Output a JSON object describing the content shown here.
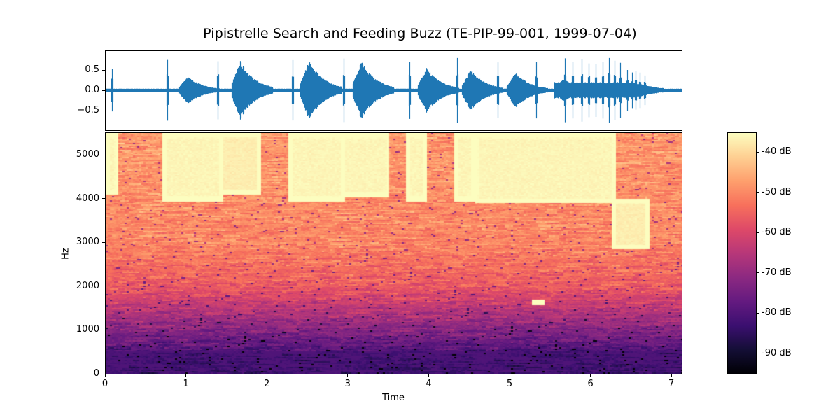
{
  "title": "Pipistrelle Search and Feeding Buzz (TE-PIP-99-001, 1999-07-04)",
  "waveform": {
    "yticks": [
      {
        "label": "0.5",
        "value": 0.5
      },
      {
        "label": "0.0",
        "value": 0.0
      },
      {
        "label": "−0.5",
        "value": -0.5
      }
    ],
    "color": "#1f77b4"
  },
  "spectrogram": {
    "ylabel": "Hz",
    "xlabel": "Time",
    "yticks": [
      {
        "label": "0",
        "value": 0
      },
      {
        "label": "1000",
        "value": 1000
      },
      {
        "label": "2000",
        "value": 2000
      },
      {
        "label": "3000",
        "value": 3000
      },
      {
        "label": "4000",
        "value": 4000
      },
      {
        "label": "5000",
        "value": 5000
      }
    ],
    "xticks": [
      {
        "label": "0",
        "value": 0
      },
      {
        "label": "1",
        "value": 1
      },
      {
        "label": "2",
        "value": 2
      },
      {
        "label": "3",
        "value": 3
      },
      {
        "label": "4",
        "value": 4
      },
      {
        "label": "5",
        "value": 5
      },
      {
        "label": "6",
        "value": 6
      },
      {
        "label": "7",
        "value": 7
      }
    ],
    "colormap": "magma"
  },
  "colorbar": {
    "ticks": [
      {
        "label": "-40 dB",
        "value": -40
      },
      {
        "label": "-50 dB",
        "value": -50
      },
      {
        "label": "-60 dB",
        "value": -60
      },
      {
        "label": "-70 dB",
        "value": -70
      },
      {
        "label": "-80 dB",
        "value": -80
      },
      {
        "label": "-90 dB",
        "value": -90
      }
    ]
  },
  "chart_data": [
    {
      "type": "line",
      "title": "Pipistrelle Search and Feeding Buzz (TE-PIP-99-001, 1999-07-04)",
      "subplot": "waveform",
      "xlabel": "",
      "ylabel": "",
      "xlim": [
        0,
        7.12
      ],
      "ylim": [
        -0.98,
        0.97
      ],
      "yticks": [
        -0.5,
        0.0,
        0.5
      ],
      "series": [
        {
          "name": "amplitude",
          "color": "#1f77b4",
          "description": "audio waveform: sparse sharp clicks followed by longer FM call bursts, then a rapid feeding buzz of clicks near 5.8-6.6 s",
          "events": [
            {
              "t": 0.09,
              "peak": 0.6,
              "trough": -0.6,
              "kind": "click"
            },
            {
              "t": 0.77,
              "peak": 0.82,
              "trough": -0.85,
              "kind": "click"
            },
            {
              "t": 0.95,
              "peak": 0.35,
              "trough": -0.35,
              "kind": "burst"
            },
            {
              "t": 1.39,
              "peak": 0.8,
              "trough": -0.8,
              "kind": "click"
            },
            {
              "t": 1.6,
              "peak": 0.72,
              "trough": -0.68,
              "kind": "burst"
            },
            {
              "t": 2.32,
              "peak": 0.78,
              "trough": -0.75,
              "kind": "click"
            },
            {
              "t": 2.45,
              "peak": 0.75,
              "trough": -0.75,
              "kind": "burst"
            },
            {
              "t": 2.95,
              "peak": 0.8,
              "trough": -0.85,
              "kind": "click"
            },
            {
              "t": 3.1,
              "peak": 0.72,
              "trough": -0.72,
              "kind": "burst"
            },
            {
              "t": 3.76,
              "peak": 0.78,
              "trough": -0.78,
              "kind": "click"
            },
            {
              "t": 3.9,
              "peak": 0.55,
              "trough": -0.6,
              "kind": "burst"
            },
            {
              "t": 4.35,
              "peak": 0.8,
              "trough": -0.8,
              "kind": "click"
            },
            {
              "t": 4.45,
              "peak": 0.52,
              "trough": -0.5,
              "kind": "burst"
            },
            {
              "t": 4.85,
              "peak": 0.75,
              "trough": -0.75,
              "kind": "click"
            },
            {
              "t": 5.0,
              "peak": 0.45,
              "trough": -0.45,
              "kind": "burst"
            },
            {
              "t": 5.33,
              "peak": 0.7,
              "trough": -0.7,
              "kind": "click"
            },
            {
              "t": 5.6,
              "peak": 0.3,
              "trough": -0.3,
              "kind": "burst"
            },
            {
              "t": 5.68,
              "peak": 0.8,
              "trough": -0.75,
              "kind": "buzz-click"
            },
            {
              "t": 5.78,
              "peak": 0.78,
              "trough": -0.75,
              "kind": "buzz-click"
            },
            {
              "t": 5.89,
              "peak": 0.8,
              "trough": -0.78,
              "kind": "buzz-click"
            },
            {
              "t": 5.98,
              "peak": 0.72,
              "trough": -0.75,
              "kind": "buzz-click"
            },
            {
              "t": 6.06,
              "peak": 0.72,
              "trough": -0.75,
              "kind": "buzz-click"
            },
            {
              "t": 6.15,
              "peak": 0.78,
              "trough": -0.8,
              "kind": "buzz-click"
            },
            {
              "t": 6.23,
              "peak": 0.85,
              "trough": -0.92,
              "kind": "buzz-click"
            },
            {
              "t": 6.3,
              "peak": 0.78,
              "trough": -0.75,
              "kind": "buzz-click"
            },
            {
              "t": 6.37,
              "peak": 0.68,
              "trough": -0.6,
              "kind": "buzz-click"
            },
            {
              "t": 6.45,
              "peak": 0.55,
              "trough": -0.55,
              "kind": "buzz-click"
            },
            {
              "t": 6.51,
              "peak": 0.5,
              "trough": -0.5,
              "kind": "buzz-click"
            },
            {
              "t": 6.56,
              "peak": 0.5,
              "trough": -0.5,
              "kind": "buzz-click"
            },
            {
              "t": 6.61,
              "peak": 0.45,
              "trough": -0.45,
              "kind": "buzz-click"
            },
            {
              "t": 6.67,
              "peak": 0.42,
              "trough": -0.42,
              "kind": "buzz-click"
            }
          ],
          "noise_floor": 0.04
        }
      ]
    },
    {
      "type": "heatmap",
      "subplot": "spectrogram",
      "xlabel": "Time",
      "ylabel": "Hz",
      "xlim": [
        0,
        7.12
      ],
      "ylim": [
        0,
        5512
      ],
      "xticks": [
        0,
        1,
        2,
        3,
        4,
        5,
        6,
        7
      ],
      "yticks": [
        0,
        1000,
        2000,
        3000,
        4000,
        5000
      ],
      "colormap": "magma",
      "colorbar": {
        "label_unit": "dB",
        "range": [
          -95,
          -35
        ],
        "ticks": [
          -40,
          -50,
          -60,
          -70,
          -80,
          -90
        ]
      },
      "bright_regions": [
        {
          "t_start": 0.0,
          "t_end": 0.15,
          "f_low": 4100,
          "f_high": 5512,
          "level_db": -36
        },
        {
          "t_start": 0.7,
          "t_end": 1.45,
          "f_low": 3950,
          "f_high": 5512,
          "level_db": -36
        },
        {
          "t_start": 1.4,
          "t_end": 1.9,
          "f_low": 4100,
          "f_high": 5512,
          "level_db": -37
        },
        {
          "t_start": 2.25,
          "t_end": 2.95,
          "f_low": 3950,
          "f_high": 5512,
          "level_db": -36
        },
        {
          "t_start": 2.9,
          "t_end": 3.5,
          "f_low": 4050,
          "f_high": 5512,
          "level_db": -36
        },
        {
          "t_start": 3.7,
          "t_end": 3.95,
          "f_low": 3950,
          "f_high": 5512,
          "level_db": -36
        },
        {
          "t_start": 4.3,
          "t_end": 4.55,
          "f_low": 3950,
          "f_high": 5512,
          "level_db": -36
        },
        {
          "t_start": 4.55,
          "t_end": 6.3,
          "f_low": 3900,
          "f_high": 5512,
          "level_db": -36
        },
        {
          "t_start": 6.25,
          "t_end": 6.7,
          "f_low": 2850,
          "f_high": 4000,
          "level_db": -37
        },
        {
          "t_start": 5.25,
          "t_end": 5.4,
          "f_low": 1580,
          "f_high": 1700,
          "level_db": -40
        }
      ],
      "background_gradient": [
        {
          "f": 5000,
          "level_db": -48
        },
        {
          "f": 3000,
          "level_db": -50
        },
        {
          "f": 2000,
          "level_db": -56
        },
        {
          "f": 1500,
          "level_db": -64
        },
        {
          "f": 1000,
          "level_db": -72
        },
        {
          "f": 500,
          "level_db": -80
        },
        {
          "f": 0,
          "level_db": -82
        }
      ]
    }
  ]
}
